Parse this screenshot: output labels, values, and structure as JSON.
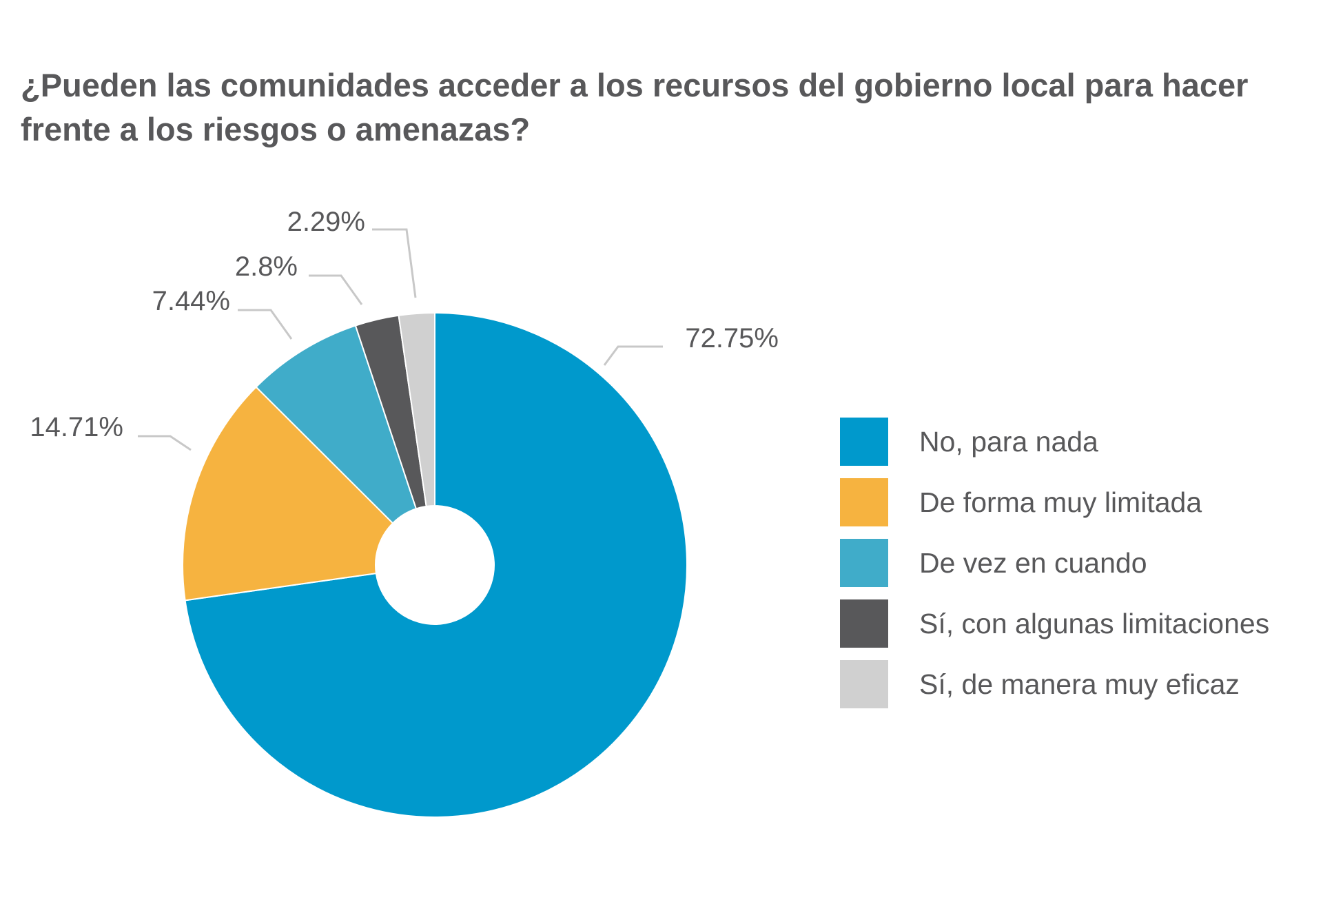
{
  "chart_data": {
    "type": "pie",
    "title": "¿Pueden las comunidades acceder a los recursos del gobierno local para hacer frente a los riesgos o amenazas?",
    "donut": true,
    "legend_position": "right",
    "series": [
      {
        "name": "No, para nada",
        "value": 72.75,
        "label": "72.75%",
        "color": "#0099cc"
      },
      {
        "name": "De forma muy limitada",
        "value": 14.71,
        "label": "14.71%",
        "color": "#f6b340"
      },
      {
        "name": "De vez en cuando",
        "value": 7.44,
        "label": "7.44%",
        "color": "#40acc9"
      },
      {
        "name": "Sí, con algunas limitaciones",
        "value": 2.8,
        "label": "2.8%",
        "color": "#58585a"
      },
      {
        "name": "Sí, de manera muy eficaz",
        "value": 2.29,
        "label": "2.29%",
        "color": "#d0d0d0"
      }
    ]
  }
}
